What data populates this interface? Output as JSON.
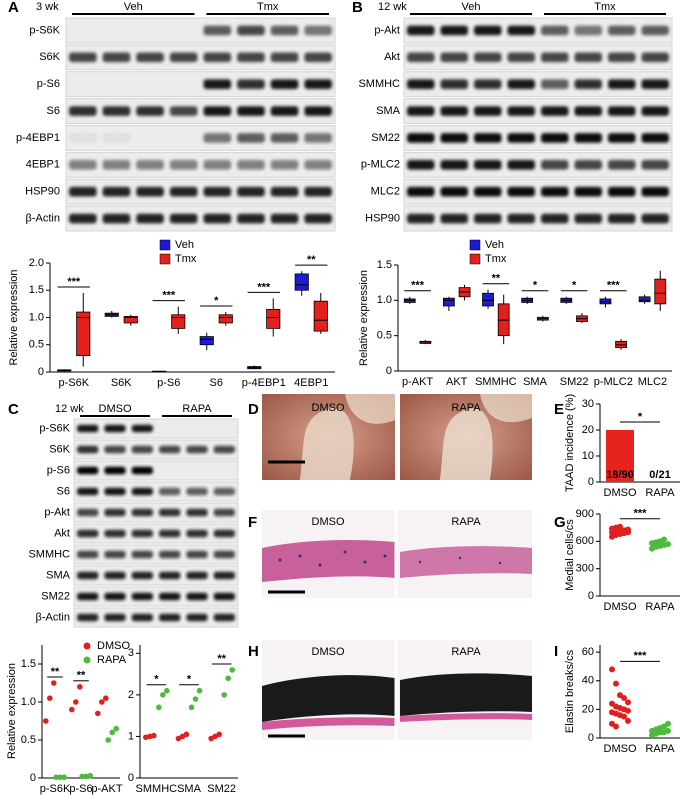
{
  "panel_labels": [
    "A",
    "B",
    "C",
    "D",
    "E",
    "F",
    "G",
    "H",
    "I"
  ],
  "blots": [
    {
      "timepoint": "3 wk",
      "groups": [
        "Veh",
        "Tmx"
      ],
      "rows": [
        "p-S6K",
        "S6K",
        "p-S6",
        "S6",
        "p-4EBP1",
        "4EBP1",
        "HSP90",
        "β-Actin"
      ]
    },
    {
      "timepoint": "12 wk",
      "groups": [
        "Veh",
        "Tmx"
      ],
      "rows": [
        "p-Akt",
        "Akt",
        "SMMHC",
        "SMA",
        "SM22",
        "p-MLC2",
        "MLC2",
        "HSP90"
      ]
    },
    {
      "timepoint": "12 wk",
      "groups": [
        "DMSO",
        "RAPA"
      ],
      "rows": [
        "p-S6K",
        "S6K",
        "p-S6",
        "S6",
        "p-Akt",
        "Akt",
        "SMMHC",
        "SMA",
        "SM22",
        "β-Actin"
      ]
    }
  ],
  "images": [
    {
      "groups": [
        "DMSO",
        "RAPA"
      ]
    },
    {
      "groups": [
        "DMSO",
        "RAPA"
      ]
    },
    {
      "groups": [
        "DMSO",
        "RAPA"
      ]
    }
  ],
  "chart_data": [
    {
      "type": "box",
      "y_label": "Relative expression",
      "categories": [
        "p-S6K",
        "S6K",
        "p-S6",
        "S6",
        "p-4EBP1",
        "4EBP1"
      ],
      "series": [
        {
          "name": "Veh",
          "color": "#1c1cd6",
          "values": [
            [
              0.01,
              0.02,
              0.03,
              0.04,
              0.05
            ],
            [
              1.0,
              1.02,
              1.05,
              1.08,
              1.12
            ],
            [
              0,
              0.005,
              0.01,
              0.015,
              0.02
            ],
            [
              0.4,
              0.5,
              0.6,
              0.65,
              0.72
            ],
            [
              0.05,
              0.06,
              0.08,
              0.1,
              0.12
            ],
            [
              1.4,
              1.5,
              1.6,
              1.8,
              1.85
            ]
          ]
        },
        {
          "name": "Tmx",
          "color": "#e2201c",
          "values": [
            [
              0.1,
              0.3,
              1.0,
              1.1,
              1.45
            ],
            [
              0.85,
              0.9,
              1.0,
              1.02,
              1.05
            ],
            [
              0.7,
              0.8,
              1.0,
              1.05,
              1.2
            ],
            [
              0.85,
              0.9,
              1.0,
              1.05,
              1.1
            ],
            [
              0.65,
              0.8,
              1.0,
              1.15,
              1.35
            ],
            [
              0.7,
              0.75,
              0.95,
              1.3,
              1.45
            ]
          ]
        }
      ],
      "significance": [
        "***",
        null,
        "***",
        "*",
        "***",
        "**"
      ],
      "ylim": [
        0,
        2
      ],
      "yticks": [
        0,
        0.5,
        {
          "value": 1,
          "label": "1.0"
        },
        1.5,
        {
          "value": 2,
          "label": "2.0"
        }
      ]
    },
    {
      "type": "box",
      "y_label": "Relative expression",
      "categories": [
        "p-AKT",
        "AKT",
        "SMMHC",
        "SMA",
        "SM22",
        "p-MLC2",
        "MLC2"
      ],
      "series": [
        {
          "name": "Veh",
          "color": "#1c1cd6",
          "values": [
            [
              0.95,
              0.97,
              1.0,
              1.02,
              1.05
            ],
            [
              0.85,
              0.92,
              1.0,
              1.03,
              1.05
            ],
            [
              0.88,
              0.92,
              1.0,
              1.1,
              1.15
            ],
            [
              0.95,
              0.97,
              1.0,
              1.03,
              1.05
            ],
            [
              0.95,
              0.97,
              1.0,
              1.03,
              1.05
            ],
            [
              0.9,
              0.95,
              0.98,
              1.02,
              1.05
            ],
            [
              0.95,
              0.98,
              1.0,
              1.05,
              1.08
            ]
          ]
        },
        {
          "name": "Tmx",
          "color": "#e2201c",
          "values": [
            [
              0.38,
              0.39,
              0.41,
              0.42,
              0.44
            ],
            [
              1.0,
              1.05,
              1.12,
              1.18,
              1.22
            ],
            [
              0.38,
              0.5,
              0.72,
              0.95,
              1.08
            ],
            [
              0.7,
              0.72,
              0.74,
              0.76,
              0.78
            ],
            [
              0.68,
              0.7,
              0.74,
              0.78,
              0.82
            ],
            [
              0.3,
              0.33,
              0.37,
              0.42,
              0.45
            ],
            [
              0.85,
              0.95,
              1.1,
              1.3,
              1.42
            ]
          ]
        }
      ],
      "significance": [
        "***",
        null,
        "**",
        "*",
        "*",
        "***",
        null
      ],
      "ylim": [
        0,
        1.5
      ],
      "yticks": [
        0,
        0.5,
        {
          "value": 1,
          "label": "1.0"
        },
        1.5
      ]
    },
    {
      "type": "dot",
      "y_label": "Relative expression",
      "categories": [
        "p-S6K",
        "p-S6",
        "p-AKT"
      ],
      "series": [
        {
          "name": "DMSO",
          "color": "#e02020",
          "values": [
            [
              0.75,
              1.05,
              1.25
            ],
            [
              0.9,
              1.0,
              1.2
            ],
            [
              0.85,
              1.0,
              1.05
            ]
          ]
        },
        {
          "name": "RAPA",
          "color": "#4cbb3c",
          "values": [
            [
              0.01,
              0.01,
              0.01
            ],
            [
              0.02,
              0.02,
              0.03
            ],
            [
              0.5,
              0.6,
              0.65
            ]
          ]
        }
      ],
      "significance": [
        "**",
        "**",
        null
      ],
      "ylim": [
        0,
        1.75
      ],
      "yticks": [
        0,
        0.5,
        {
          "value": 1,
          "label": "1.0"
        },
        1.5
      ]
    },
    {
      "type": "dot",
      "categories": [
        "SMMHC",
        "SMA",
        "SM22"
      ],
      "series": [
        {
          "color": "#e02020",
          "values": [
            [
              0.98,
              1.0,
              1.02
            ],
            [
              0.95,
              1.0,
              1.05
            ],
            [
              0.95,
              1.0,
              1.05
            ]
          ]
        },
        {
          "color": "#4cbb3c",
          "values": [
            [
              1.7,
              2.0,
              2.1
            ],
            [
              1.7,
              1.9,
              2.1
            ],
            [
              2.0,
              2.4,
              2.6
            ]
          ]
        }
      ],
      "significance": [
        "*",
        "*",
        "**"
      ],
      "ylim": [
        0,
        3.2
      ],
      "yticks": [
        0,
        1,
        2,
        3
      ]
    },
    {
      "type": "bar",
      "y_label": "TAAD incidence (%)",
      "categories": [
        "DMSO",
        "RAPA"
      ],
      "values": [
        20,
        0
      ],
      "value_labels": [
        "18/90",
        "0/21"
      ],
      "color": "#e8231f",
      "significance": [
        "*"
      ],
      "ylim": [
        0,
        30
      ],
      "yticks": [
        0,
        10,
        20,
        30
      ]
    },
    {
      "type": "dot",
      "y_label": "Medial cells/cs",
      "categories": [
        "DMSO",
        "RAPA"
      ],
      "series": [
        {
          "colors": [
            "#e02020",
            "#4cbb3c"
          ],
          "values": [
            [
              650,
              670,
              680,
              690,
              700,
              700,
              710,
              715,
              720,
              730,
              740,
              750,
              760,
              690,
              705
            ],
            [
              520,
              540,
              550,
              560,
              570,
              580,
              590,
              600,
              620
            ]
          ]
        }
      ],
      "significance": [
        "***"
      ],
      "ylim": [
        0,
        900
      ],
      "yticks": [
        0,
        300,
        600,
        900
      ]
    },
    {
      "type": "dot",
      "y_label": "Elastin breaks/cs",
      "categories": [
        "DMSO",
        "RAPA"
      ],
      "series": [
        {
          "colors": [
            "#e02020",
            "#4cbb3c"
          ],
          "values": [
            [
              48,
              38,
              30,
              28,
              25,
              24,
              22,
              21,
              20,
              19,
              18,
              17,
              16,
              15,
              12,
              10,
              8
            ],
            [
              2,
              3,
              4,
              4,
              5,
              5,
              6,
              7,
              8,
              10
            ]
          ]
        }
      ],
      "significance": [
        "***"
      ],
      "ylim": [
        0,
        65
      ],
      "yticks": [
        0,
        20,
        40,
        60
      ]
    }
  ]
}
